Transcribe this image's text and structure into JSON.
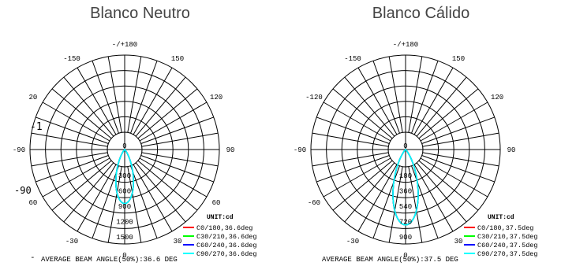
{
  "chart_data": [
    {
      "type": "polar",
      "title": "Blanco Neutro",
      "unit_label": "UNIT:cd",
      "radial_ticks": [
        "0",
        "300",
        "600",
        "900",
        "1200",
        "1500"
      ],
      "radial_max": 1500,
      "angle_labels": [
        {
          "text": "-/+180",
          "deg": 0
        },
        {
          "text": "-150",
          "deg": -30
        },
        {
          "text": "150",
          "deg": 30
        },
        {
          "text": "120",
          "deg": 60
        },
        {
          "text": "90",
          "deg": 90
        },
        {
          "text": "60",
          "deg": 120
        },
        {
          "text": "30",
          "deg": 150
        },
        {
          "text": "0",
          "deg": 180
        },
        {
          "text": "-30",
          "deg": -150
        },
        {
          "text": "60",
          "deg": -120
        },
        {
          "text": "-90",
          "deg": -90
        },
        {
          "text": "20",
          "deg": -60
        }
      ],
      "stray_labels": [
        "-1",
        "-90",
        "-"
      ],
      "series": [
        {
          "name": "C0/180,36.6deg",
          "color": "#ff0000",
          "peak": 1050,
          "half_angle_deg": 18.3
        },
        {
          "name": "C30/210,36.6deg",
          "color": "#00ff00",
          "peak": 1050,
          "half_angle_deg": 18.3
        },
        {
          "name": "C60/240,36.6deg",
          "color": "#0000ff",
          "peak": 1050,
          "half_angle_deg": 18.3
        },
        {
          "name": "C90/270,36.6deg",
          "color": "#00ffff",
          "peak": 1050,
          "half_angle_deg": 18.3
        }
      ],
      "footer": "AVERAGE BEAM ANGLE(50%):36.6 DEG"
    },
    {
      "type": "polar",
      "title": "Blanco Cálido",
      "unit_label": "UNIT:cd",
      "radial_ticks": [
        "0",
        "180",
        "360",
        "540",
        "720",
        "900"
      ],
      "radial_max": 900,
      "angle_labels": [
        {
          "text": "-/+180",
          "deg": 0
        },
        {
          "text": "-150",
          "deg": -30
        },
        {
          "text": "150",
          "deg": 30
        },
        {
          "text": "120",
          "deg": 60
        },
        {
          "text": "90",
          "deg": 90
        },
        {
          "text": "30",
          "deg": 150
        },
        {
          "text": "0",
          "deg": 180
        },
        {
          "text": "-30",
          "deg": -150
        },
        {
          "text": "-60",
          "deg": -120
        },
        {
          "text": "-90",
          "deg": -90
        },
        {
          "text": "-120",
          "deg": -60
        }
      ],
      "stray_labels": [],
      "series": [
        {
          "name": "C0/180,37.5deg",
          "color": "#ff0000",
          "peak": 880,
          "half_angle_deg": 18.75
        },
        {
          "name": "C30/210,37.5deg",
          "color": "#00ff00",
          "peak": 880,
          "half_angle_deg": 18.75
        },
        {
          "name": "C60/240,37.5deg",
          "color": "#0000ff",
          "peak": 880,
          "half_angle_deg": 18.75
        },
        {
          "name": "C90/270,37.5deg",
          "color": "#00ffff",
          "peak": 880,
          "half_angle_deg": 18.75
        }
      ],
      "footer": "AVERAGE BEAM ANGLE(50%):37.5 DEG"
    }
  ]
}
